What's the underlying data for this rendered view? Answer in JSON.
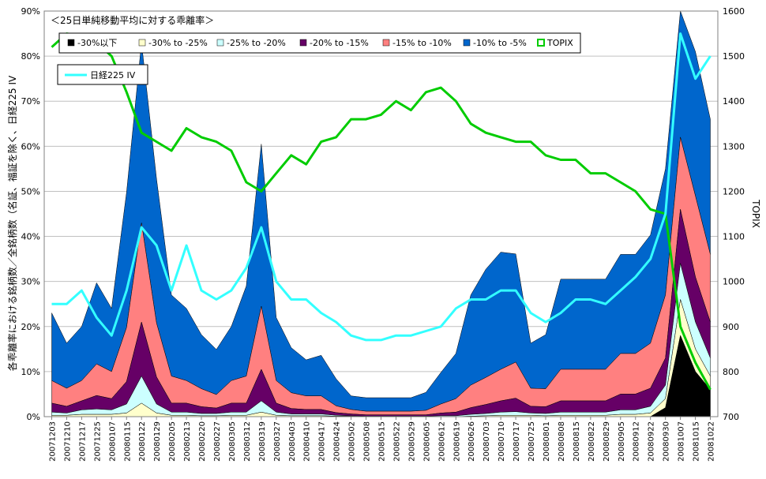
{
  "chart_data": {
    "type": "area",
    "title": "＜25日単純移動平均に対する乖離率＞",
    "ylabel_left": "各乖離率における銘柄数／全銘柄数（名証、福証を除く、日経225 IV",
    "ylabel_right": "TOPIX",
    "ylim_left": [
      0,
      90
    ],
    "ylim_right": [
      700,
      1600
    ],
    "yticks_left": [
      "0%",
      "10%",
      "20%",
      "30%",
      "40%",
      "50%",
      "60%",
      "70%",
      "80%",
      "90%"
    ],
    "yticks_left_values": [
      0,
      10,
      20,
      30,
      40,
      50,
      60,
      70,
      80,
      90
    ],
    "yticks_right": [
      "700",
      "800",
      "900",
      "1000",
      "1100",
      "1200",
      "1300",
      "1400",
      "1500",
      "1600"
    ],
    "yticks_right_values": [
      700,
      800,
      900,
      1000,
      1100,
      1200,
      1300,
      1400,
      1500,
      1600
    ],
    "x_tick_labels": [
      "20071203",
      "20071210",
      "20071217",
      "20071225",
      "20080107",
      "20080115",
      "20080122",
      "20080129",
      "20080205",
      "20080213",
      "20080220",
      "20080227",
      "20080305",
      "20080312",
      "20080319",
      "20080327",
      "20080403",
      "20080410",
      "20080417",
      "20080424",
      "20080502",
      "20080508",
      "20080515",
      "20080522",
      "20080529",
      "20080605",
      "20080612",
      "20080619",
      "20080626",
      "20080703",
      "20080710",
      "20080717",
      "20080725",
      "20080801",
      "20080808",
      "20080815",
      "20080822",
      "20080829",
      "20080905",
      "20080912",
      "20080922",
      "20080930",
      "20081007",
      "20081015",
      "20081022"
    ],
    "grid": true,
    "legend_position": "top",
    "series": [
      {
        "name": "-30%以下",
        "color": "#000000",
        "axis": "left",
        "kind": "stacked-area",
        "values": [
          0,
          0,
          0,
          0,
          0,
          0,
          0,
          0,
          0,
          0,
          0,
          0,
          0,
          0,
          0,
          0,
          0,
          0,
          0,
          0,
          0,
          0,
          0,
          0,
          0,
          0,
          0,
          0,
          0,
          0,
          0,
          0,
          0,
          0,
          0,
          0,
          0,
          0,
          0,
          0,
          0,
          2,
          18,
          10,
          6
        ]
      },
      {
        "name": "-30% to -25%",
        "color": "#ffffcc",
        "axis": "left",
        "kind": "stacked-area",
        "values": [
          0.3,
          0.3,
          0.5,
          0.5,
          0.5,
          0.8,
          3,
          0.8,
          0.3,
          0.3,
          0.2,
          0.2,
          0.3,
          0.3,
          1,
          0.3,
          0.2,
          0.2,
          0.2,
          0.1,
          0.1,
          0,
          0,
          0,
          0,
          0,
          0,
          0,
          0.1,
          0.2,
          0.3,
          0.3,
          0.3,
          0.2,
          0.3,
          0.3,
          0.3,
          0.3,
          0.5,
          0.5,
          0.8,
          2,
          8,
          5,
          3
        ]
      },
      {
        "name": "-25% to -20%",
        "color": "#ccffff",
        "axis": "left",
        "kind": "stacked-area",
        "values": [
          0.7,
          0.5,
          1,
          1.2,
          1,
          2,
          6,
          2,
          0.7,
          0.7,
          0.5,
          0.5,
          0.7,
          0.7,
          2.5,
          0.7,
          0.4,
          0.4,
          0.4,
          0.2,
          0.1,
          0.1,
          0.1,
          0.1,
          0.1,
          0.1,
          0.2,
          0.2,
          0.4,
          0.5,
          0.7,
          0.8,
          0.5,
          0.5,
          0.7,
          0.7,
          0.7,
          0.7,
          1,
          1,
          1.5,
          3,
          8,
          6,
          4
        ]
      },
      {
        "name": "-20% to -15%",
        "color": "#660066",
        "axis": "left",
        "kind": "stacked-area",
        "values": [
          2,
          1.5,
          2,
          3,
          2.5,
          5,
          12,
          6,
          2,
          2,
          1.5,
          1.2,
          2,
          2,
          7,
          2,
          1.2,
          1,
          1,
          0.6,
          0.4,
          0.3,
          0.3,
          0.3,
          0.3,
          0.3,
          0.6,
          0.8,
          1.5,
          2,
          2.5,
          3,
          1.5,
          1.5,
          2.5,
          2.5,
          2.5,
          2.5,
          3.5,
          3.5,
          4,
          6,
          12,
          10,
          8
        ]
      },
      {
        "name": "-15% to -10%",
        "color": "#ff8080",
        "axis": "left",
        "kind": "stacked-area",
        "values": [
          5,
          4,
          4.5,
          7,
          6,
          12,
          22,
          12,
          6,
          5,
          4,
          3,
          5,
          6,
          14,
          5,
          3.5,
          3,
          3,
          1.5,
          1,
          0.8,
          0.8,
          0.8,
          0.8,
          1,
          2,
          3,
          5,
          6,
          7,
          8,
          4,
          4,
          7,
          7,
          7,
          7,
          9,
          9,
          10,
          14,
          16,
          18,
          15
        ]
      },
      {
        "name": "-10% to -5%",
        "color": "#0066cc",
        "axis": "left",
        "kind": "stacked-area",
        "values": [
          15,
          10,
          12,
          18,
          14,
          30,
          40,
          32,
          18,
          16,
          12,
          10,
          12,
          20,
          36,
          14,
          10,
          8,
          9,
          6,
          3,
          3,
          3,
          3,
          3,
          4,
          7,
          10,
          20,
          24,
          26,
          24,
          10,
          12,
          20,
          20,
          20,
          20,
          22,
          22,
          24,
          28,
          30,
          32,
          30
        ]
      },
      {
        "name": "TOPIX",
        "color": "#00cc00",
        "axis": "right",
        "kind": "line",
        "values": [
          1520,
          1550,
          1545,
          1530,
          1500,
          1420,
          1330,
          1310,
          1290,
          1340,
          1320,
          1310,
          1290,
          1220,
          1200,
          1240,
          1280,
          1260,
          1310,
          1320,
          1360,
          1360,
          1370,
          1400,
          1380,
          1420,
          1430,
          1400,
          1350,
          1330,
          1320,
          1310,
          1310,
          1280,
          1270,
          1270,
          1240,
          1240,
          1220,
          1200,
          1160,
          1150,
          900,
          820,
          760
        ]
      },
      {
        "name": "日経225 IV",
        "color": "#33ffff",
        "axis": "left",
        "kind": "line",
        "values": [
          25,
          25,
          28,
          22,
          18,
          28,
          42,
          38,
          28,
          38,
          28,
          26,
          28,
          33,
          42,
          30,
          26,
          26,
          23,
          21,
          18,
          17,
          17,
          18,
          18,
          19,
          20,
          24,
          26,
          26,
          28,
          28,
          23,
          21,
          23,
          26,
          26,
          25,
          28,
          31,
          35,
          45,
          85,
          75,
          80
        ]
      }
    ]
  }
}
